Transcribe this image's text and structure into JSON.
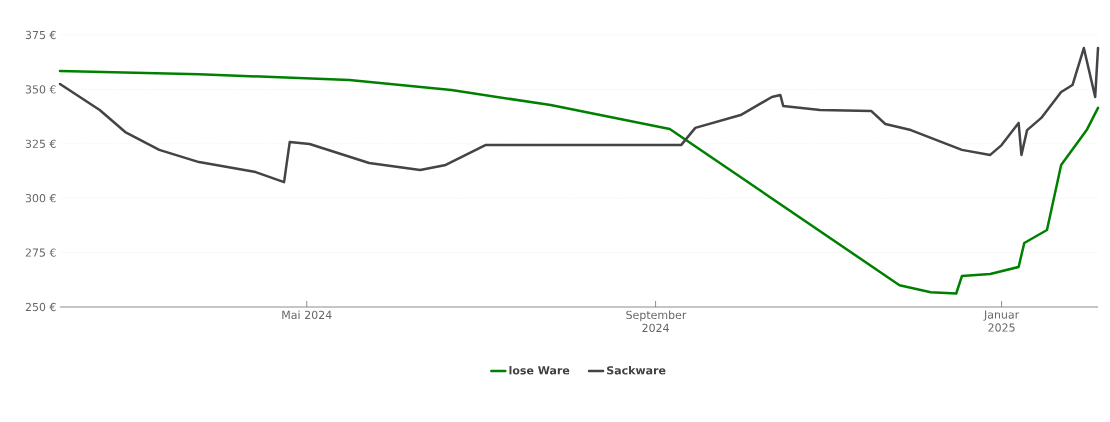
{
  "chart_data": {
    "type": "line",
    "xlim": [
      "2024-02-04",
      "2025-02-04"
    ],
    "xticks": [
      {
        "value": "2024-05-01",
        "label": "Mai 2024"
      },
      {
        "value": "2024-09-01",
        "label": "September 2024"
      },
      {
        "value": "2025-01-01",
        "label": "Januar 2025"
      }
    ],
    "ylim": [
      250,
      375
    ],
    "yticks": [
      {
        "value": 250,
        "label": "250 €"
      },
      {
        "value": 275,
        "label": "275 €"
      },
      {
        "value": 300,
        "label": "300 €"
      },
      {
        "value": 325,
        "label": "325 €"
      },
      {
        "value": 350,
        "label": "350 €"
      },
      {
        "value": 375,
        "label": "375 €"
      }
    ],
    "grid": "y",
    "legend": "bottom",
    "marker": "none",
    "line_style": "solid",
    "series": [
      {
        "name": "lose Ware",
        "color": "#008000",
        "x": [
          "2024-02-04",
          "2024-03-24",
          "2024-05-16",
          "2024-06-21",
          "2024-07-26",
          "2024-09-06",
          "2024-11-26",
          "2024-12-07",
          "2024-12-16",
          "2024-12-18",
          "2024-12-28",
          "2025-01-07",
          "2025-01-09",
          "2025-01-17",
          "2025-01-22",
          "2025-01-31",
          "2025-02-04"
        ],
        "values": [
          358.5,
          357,
          354.3,
          349.7,
          342.8,
          331.8,
          260,
          256.8,
          256.2,
          264.2,
          265.2,
          268.4,
          279.4,
          285.4,
          315.3,
          331.3,
          341.5
        ]
      },
      {
        "name": "Sackware",
        "color": "#434348",
        "x": [
          "2024-02-04",
          "2024-02-18",
          "2024-02-27",
          "2024-03-10",
          "2024-03-24",
          "2024-04-13",
          "2024-04-23",
          "2024-04-25",
          "2024-05-02",
          "2024-05-23",
          "2024-06-10",
          "2024-06-19",
          "2024-07-03",
          "2024-09-10",
          "2024-09-15",
          "2024-10-01",
          "2024-10-12",
          "2024-10-15",
          "2024-10-16",
          "2024-10-29",
          "2024-11-16",
          "2024-11-21",
          "2024-11-30",
          "2024-12-18",
          "2024-12-28",
          "2025-01-01",
          "2025-01-07",
          "2025-01-08",
          "2025-01-10",
          "2025-01-15",
          "2025-01-22",
          "2025-01-26",
          "2025-01-30",
          "2025-02-03",
          "2025-02-04"
        ],
        "values": [
          352.5,
          340.5,
          330.4,
          322.2,
          316.6,
          312,
          307.4,
          325.8,
          324.9,
          316.2,
          313,
          315.3,
          324.4,
          324.4,
          332.3,
          338.2,
          346.5,
          347.4,
          342.4,
          340.5,
          340.1,
          334.1,
          331.3,
          322.2,
          319.9,
          324.4,
          334.6,
          319.9,
          331.3,
          336.9,
          348.8,
          352,
          369,
          346.5,
          369
        ]
      }
    ]
  }
}
